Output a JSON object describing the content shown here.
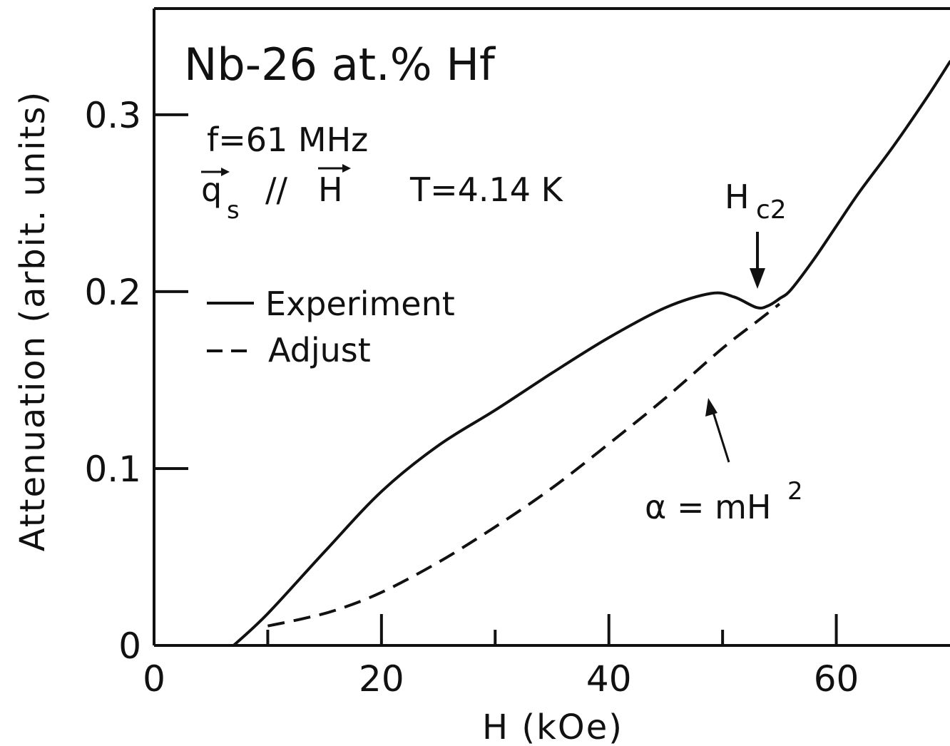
{
  "chart_data": {
    "type": "line",
    "title": "Nb-26 at.% Hf",
    "xlabel": "H (kOe)",
    "ylabel": "Attenuation (arbit. units)",
    "xlim": [
      0,
      70
    ],
    "ylim": [
      0,
      0.36
    ],
    "x_ticks": [
      0,
      20,
      40,
      60
    ],
    "x_minor_ticks": [
      10,
      30,
      50
    ],
    "y_ticks": [
      0,
      0.1,
      0.2,
      0.3
    ],
    "x_tick_labels": [
      "0",
      "20",
      "40",
      "60"
    ],
    "y_tick_labels": [
      "0",
      "0.1",
      "0.2",
      "0.3"
    ],
    "grid": false,
    "legend_position": "upper-left",
    "conditions": {
      "frequency": "f=61 MHz",
      "wave_vector_prefix": "q",
      "wave_vector_subscript": "s",
      "parallel_symbol": "//",
      "field_symbol": "H",
      "temperature": "T=4.14 K"
    },
    "series": [
      {
        "name": "Experiment",
        "style": "solid",
        "x": [
          7,
          10,
          15,
          20,
          25,
          30,
          35,
          40,
          45,
          49,
          51,
          53,
          54,
          55,
          56,
          58,
          60,
          62,
          65,
          68,
          70
        ],
        "y": [
          0.0,
          0.018,
          0.053,
          0.087,
          0.113,
          0.133,
          0.154,
          0.174,
          0.191,
          0.199,
          0.197,
          0.191,
          0.192,
          0.196,
          0.201,
          0.218,
          0.237,
          0.256,
          0.282,
          0.31,
          0.33
        ]
      },
      {
        "name": "Adjust",
        "style": "dashed",
        "x": [
          10,
          13,
          16,
          20,
          25,
          30,
          35,
          40,
          45,
          50,
          53,
          55
        ],
        "y": [
          0.011,
          0.015,
          0.02,
          0.03,
          0.047,
          0.067,
          0.089,
          0.114,
          0.14,
          0.168,
          0.183,
          0.193
        ]
      }
    ],
    "annotations": [
      {
        "text": "H",
        "subscript": "c2",
        "points_to": {
          "x": 53,
          "y": 0.2
        }
      },
      {
        "text": "α = mH",
        "superscript": "2",
        "points_to": {
          "x": 48,
          "y": 0.148
        }
      }
    ]
  }
}
